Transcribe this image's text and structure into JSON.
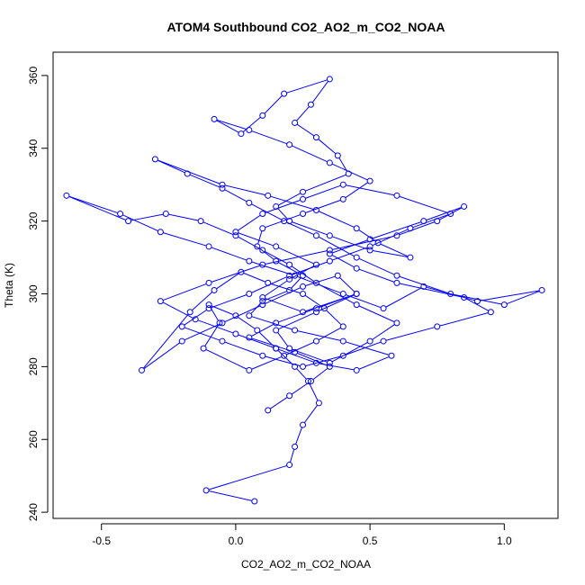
{
  "chart_data": {
    "type": "scatter",
    "title": "ATOM4 Southbound CO2_AO2_m_CO2_NOAA",
    "xlabel": "CO2_AO2_m_CO2_NOAA",
    "ylabel": "Theta (K)",
    "xlim": [
      -0.68,
      1.2
    ],
    "ylim": [
      238.3,
      366.4
    ],
    "x_ticks": [
      -0.5,
      0.0,
      0.5,
      1.0
    ],
    "x_tick_labels": [
      "-0.5",
      "0.0",
      "0.5",
      "1.0"
    ],
    "y_ticks": [
      240,
      260,
      280,
      300,
      320,
      340,
      360
    ],
    "y_tick_labels": [
      "240",
      "260",
      "280",
      "300",
      "320",
      "340",
      "360"
    ],
    "grid": false,
    "legend": "none",
    "marker": "open-circle",
    "connected": true,
    "colors": {
      "series": "#0000ff",
      "axis": "#000000",
      "background": "#ffffff"
    },
    "series": [
      {
        "x": [
          0.07,
          -0.11,
          0.2,
          0.22,
          0.25,
          0.31,
          0.27,
          0.22,
          0.15,
          0.08,
          0.0,
          -0.1,
          -0.06,
          -0.12,
          0.05,
          0.18,
          0.3,
          0.4,
          0.33,
          0.25,
          0.12,
          0.02,
          -0.08,
          -0.17,
          -0.35,
          -0.2,
          -0.05,
          0.1,
          0.25,
          0.38,
          0.45,
          0.3,
          0.15,
          0.2,
          0.35,
          0.5,
          0.6,
          0.45,
          0.3,
          0.2,
          0.1,
          0.0,
          -0.13,
          -0.26,
          -0.4,
          -0.63,
          -0.43,
          -0.28,
          -0.1,
          0.05,
          0.22,
          0.4,
          0.55,
          0.7,
          0.9,
          1.14,
          1.0,
          0.8,
          0.6,
          0.45,
          0.3,
          0.18,
          0.05,
          -0.05,
          -0.18,
          -0.3,
          -0.05,
          0.12,
          0.3,
          0.45,
          0.53,
          0.65,
          0.5,
          0.35,
          0.2,
          0.15,
          0.25,
          0.42,
          0.38,
          0.3,
          0.22,
          0.28,
          0.35,
          0.18,
          0.1,
          0.02,
          -0.08,
          0.05,
          0.2,
          0.35,
          0.5,
          0.4,
          0.25,
          0.1,
          0.08,
          0.15,
          0.25,
          0.2,
          0.1,
          0.05,
          0.22,
          0.4,
          0.58,
          0.45,
          0.3,
          0.15,
          0.0,
          -0.15,
          -0.28,
          -0.1,
          0.1,
          0.35,
          0.6,
          0.75,
          0.85,
          0.7,
          0.5,
          0.35,
          0.45,
          0.6,
          0.85,
          0.95,
          0.75,
          0.55,
          0.4,
          0.25,
          0.1,
          -0.05,
          -0.2,
          -0.1,
          0.05,
          0.2,
          0.35,
          0.5,
          0.65,
          0.8,
          0.6,
          0.4,
          0.25,
          0.1,
          0.0,
          0.15,
          0.3,
          0.2,
          0.1,
          0.25,
          0.45,
          0.3,
          0.15,
          0.05,
          0.22,
          0.35,
          0.28,
          0.2,
          0.12
        ],
        "y": [
          243,
          246,
          253,
          258,
          264,
          270,
          276,
          280,
          285,
          290,
          294,
          297,
          292,
          285,
          279,
          283,
          287,
          291,
          296,
          300,
          303,
          306,
          301,
          295,
          279,
          287,
          292,
          297,
          302,
          305,
          300,
          295,
          290,
          285,
          281,
          287,
          292,
          297,
          303,
          308,
          312,
          316,
          320,
          322,
          320,
          327,
          322,
          317,
          313,
          309,
          305,
          300,
          296,
          302,
          298,
          301,
          297,
          300,
          305,
          310,
          316,
          320,
          325,
          329,
          333,
          337,
          330,
          327,
          323,
          318,
          314,
          310,
          312,
          316,
          320,
          324,
          328,
          333,
          338,
          343,
          347,
          352,
          359,
          355,
          349,
          344,
          348,
          345,
          341,
          336,
          331,
          326,
          322,
          318,
          313,
          309,
          305,
          301,
          298,
          294,
          290,
          287,
          283,
          279,
          281,
          285,
          289,
          293,
          298,
          303,
          308,
          312,
          316,
          320,
          324,
          320,
          315,
          311,
          307,
          303,
          299,
          295,
          291,
          287,
          283,
          280,
          283,
          287,
          291,
          296,
          300,
          305,
          309,
          313,
          318,
          322,
          327,
          330,
          326,
          322,
          317,
          313,
          308,
          304,
          299,
          295,
          300,
          296,
          292,
          288,
          284,
          280,
          276,
          272,
          268
        ]
      }
    ]
  }
}
